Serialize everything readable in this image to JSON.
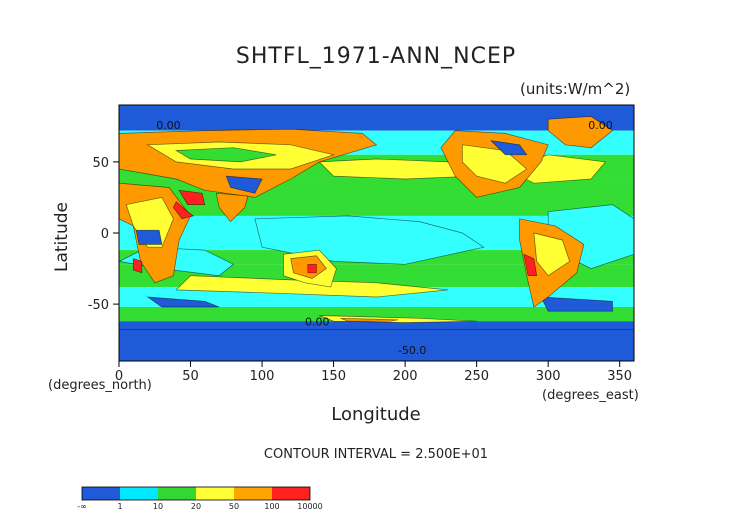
{
  "chart_data": {
    "type": "heatmap",
    "title": "SHTFL_1971-ANN_NCEP",
    "units": "(units:W/m^2)",
    "xlabel": "Longitude",
    "x_sub": "(degrees_east)",
    "ylabel": "Latitude",
    "y_sub": "(degrees_north)",
    "xlim": [
      0,
      360
    ],
    "ylim": [
      -90,
      90
    ],
    "x_ticks": [
      0,
      50,
      100,
      150,
      200,
      250,
      300,
      350
    ],
    "y_ticks": [
      50,
      0,
      -50
    ],
    "contour_interval": "CONTOUR INTERVAL = 2.500E+01",
    "contour_labels": [
      "0.00",
      "0.00",
      "0.00",
      "-50.0"
    ],
    "colorbar": {
      "labels": [
        "-∞",
        "1",
        "10",
        "20",
        "50",
        "100",
        "10000"
      ],
      "colors": [
        "#1f5ad8",
        "#1f5ad8",
        "#00e8ff",
        "#00e8ff",
        "#33d633",
        "#33d633",
        "#ffff33",
        "#ffff33",
        "#ffa500",
        "#ffa500",
        "#ff2020",
        "#ff2020"
      ]
    },
    "palette": {
      "deep_blue": "#1f5ad8",
      "cyan": "#33ffff",
      "green": "#33dd33",
      "yellow": "#ffff33",
      "orange": "#ff9900",
      "red": "#ff2020"
    }
  }
}
